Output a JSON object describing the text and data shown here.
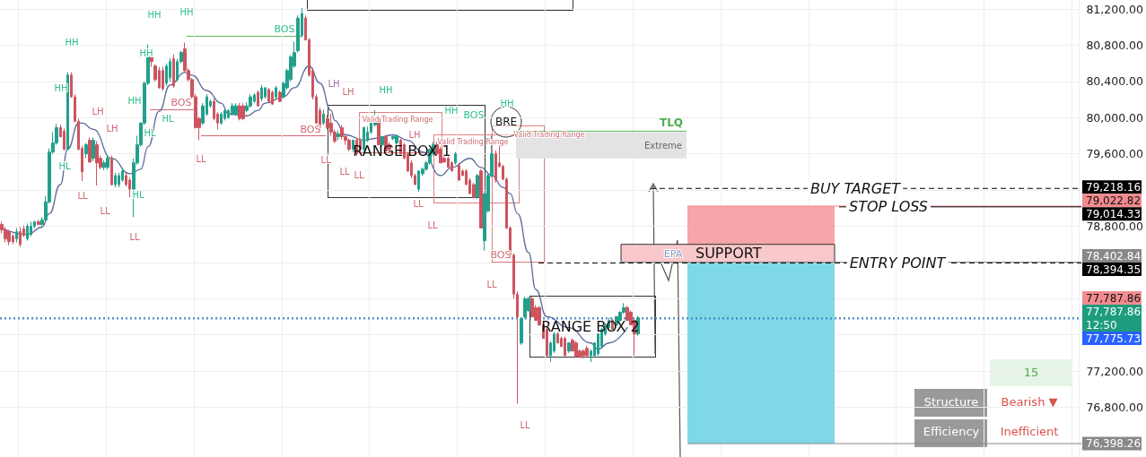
{
  "chart_data": {
    "type": "candlestick",
    "categories": [
      null,
      null,
      null,
      null,
      null,
      null,
      null,
      null,
      null,
      null,
      null,
      null,
      null,
      null,
      null,
      null,
      null,
      null,
      null,
      null,
      null,
      null,
      null,
      null,
      null,
      null,
      null,
      null,
      null,
      null,
      null,
      null,
      null,
      null,
      null,
      null,
      null,
      null,
      null,
      null,
      null,
      null,
      null,
      null,
      null,
      null,
      null,
      null,
      null,
      null,
      null,
      null,
      null,
      null,
      null,
      null,
      null,
      null,
      null,
      null,
      null,
      null,
      null,
      null,
      null,
      null,
      null,
      null,
      null,
      null,
      null,
      null,
      null,
      null,
      null,
      null,
      null,
      null,
      null,
      null,
      null,
      null,
      null,
      null,
      null,
      null,
      null,
      null,
      null,
      null,
      null,
      null,
      null,
      null,
      null,
      null,
      null,
      null,
      null,
      null,
      null,
      null,
      null,
      null,
      null,
      null,
      null,
      null,
      null,
      null,
      null,
      null,
      null,
      null,
      null,
      null,
      null,
      null,
      null,
      null,
      null,
      null,
      null,
      null,
      null,
      null,
      null,
      null,
      null,
      null,
      null,
      null,
      null,
      null,
      null,
      null,
      null,
      null,
      null,
      null,
      null,
      null,
      null,
      null,
      null,
      null,
      null,
      null,
      null,
      null,
      null,
      null,
      null,
      null,
      null,
      null,
      null,
      null,
      null,
      null,
      null,
      null,
      null,
      null,
      null,
      null,
      null,
      null,
      null,
      null,
      null,
      null,
      null,
      null,
      null,
      null,
      null,
      null,
      null,
      null,
      null,
      null,
      null,
      null,
      null,
      null,
      null,
      null,
      null,
      null,
      null,
      null,
      null,
      null,
      null,
      null,
      null,
      null,
      null,
      null,
      null,
      null,
      null,
      null,
      null,
      null,
      null,
      null,
      null,
      null,
      null,
      null,
      null,
      null,
      null,
      null,
      null,
      null,
      null,
      null,
      null,
      null,
      null,
      null,
      null,
      null,
      null,
      null,
      null,
      null,
      null,
      null,
      null,
      null,
      null,
      null,
      null,
      null,
      null,
      null,
      null,
      null,
      null,
      null,
      null,
      null,
      null,
      null,
      null,
      null,
      null,
      null,
      null,
      null,
      null,
      null,
      null,
      null,
      null,
      null,
      null,
      null,
      null,
      null,
      null,
      null,
      null,
      null,
      null,
      null,
      null,
      null,
      null,
      null,
      null,
      null,
      null,
      null,
      null,
      null,
      null,
      null,
      null,
      null,
      null,
      null,
      null,
      null,
      null,
      null,
      null,
      null,
      null,
      null,
      null
    ],
    "ohlc": [
      [
        78820,
        78850,
        78720,
        78760
      ],
      [
        78760,
        78790,
        78620,
        78660
      ],
      [
        78740,
        78760,
        78590,
        78630
      ],
      [
        78690,
        78720,
        78600,
        78630
      ],
      [
        78660,
        78780,
        78620,
        78740
      ],
      [
        78740,
        78790,
        78570,
        78600
      ],
      [
        78770,
        78810,
        78680,
        78700
      ],
      [
        78660,
        78830,
        78640,
        78800
      ],
      [
        78710,
        78850,
        78690,
        78800
      ],
      [
        78800,
        78860,
        78780,
        78850
      ],
      [
        78850,
        78870,
        78810,
        78820
      ],
      [
        78820,
        78900,
        78800,
        78870
      ],
      [
        78870,
        79130,
        78850,
        79070
      ],
      [
        79070,
        79660,
        79050,
        79620
      ],
      [
        79620,
        79840,
        79600,
        79720
      ],
      [
        79720,
        79930,
        79700,
        79890
      ],
      [
        79890,
        79920,
        79780,
        79790
      ],
      [
        79850,
        79880,
        79640,
        79650
      ],
      [
        79650,
        80500,
        79640,
        80470
      ],
      [
        80470,
        80500,
        80220,
        80230
      ],
      [
        80230,
        80260,
        79950,
        79960
      ],
      [
        79960,
        79990,
        79640,
        79650
      ],
      [
        79660,
        79690,
        79300,
        79400
      ],
      [
        79600,
        79720,
        79550,
        79700
      ],
      [
        79750,
        79780,
        79500,
        79510
      ],
      [
        79550,
        79780,
        79520,
        79750
      ],
      [
        79700,
        79740,
        79250,
        79500
      ],
      [
        79550,
        79580,
        79430,
        79450
      ],
      [
        79450,
        79530,
        79420,
        79500
      ],
      [
        79450,
        79580,
        79430,
        79550
      ],
      [
        79550,
        79580,
        79250,
        79260
      ],
      [
        79260,
        79390,
        79230,
        79360
      ],
      [
        79260,
        79390,
        79230,
        79360
      ],
      [
        79310,
        79440,
        79290,
        79410
      ],
      [
        79360,
        79390,
        79240,
        79260
      ],
      [
        79310,
        79340,
        79120,
        79210
      ],
      [
        79210,
        79550,
        78900,
        79500
      ],
      [
        79500,
        79800,
        79480,
        79700
      ],
      [
        79700,
        79950,
        79680,
        79940
      ],
      [
        79940,
        80400,
        79920,
        80380
      ],
      [
        80380,
        80810,
        80360,
        80670
      ],
      [
        80670,
        80700,
        80560,
        80620
      ],
      [
        80570,
        80590,
        80400,
        80420
      ],
      [
        80520,
        80560,
        80320,
        80330
      ],
      [
        80520,
        80560,
        80300,
        80320
      ],
      [
        80380,
        80600,
        80350,
        80570
      ],
      [
        80440,
        80660,
        80400,
        80620
      ],
      [
        80650,
        80700,
        80330,
        80350
      ],
      [
        80420,
        80650,
        80400,
        80620
      ],
      [
        80620,
        80740,
        80600,
        80720
      ],
      [
        80760,
        80830,
        80500,
        80520
      ],
      [
        80520,
        80550,
        80400,
        80420
      ],
      [
        80420,
        80440,
        80210,
        80230
      ],
      [
        80230,
        80260,
        79880,
        79890
      ],
      [
        79990,
        80010,
        79750,
        79890
      ],
      [
        79940,
        80160,
        79920,
        80130
      ],
      [
        80040,
        80260,
        80020,
        80230
      ],
      [
        80130,
        80200,
        80110,
        80180
      ],
      [
        80180,
        80210,
        79970,
        79990
      ],
      [
        80040,
        80060,
        79870,
        79940
      ],
      [
        79940,
        80060,
        79920,
        80040
      ],
      [
        79990,
        80110,
        79970,
        80080
      ],
      [
        80000,
        80090,
        79990,
        80080
      ],
      [
        80040,
        80160,
        80020,
        80130
      ],
      [
        80040,
        80160,
        80020,
        80130
      ],
      [
        80130,
        80160,
        79970,
        79990
      ],
      [
        80130,
        80160,
        79970,
        79990
      ],
      [
        80080,
        80170,
        80060,
        80130
      ],
      [
        80130,
        80260,
        80110,
        80230
      ],
      [
        80180,
        80270,
        80160,
        80250
      ],
      [
        80280,
        80300,
        80120,
        80130
      ],
      [
        80210,
        80360,
        80180,
        80330
      ],
      [
        80230,
        80340,
        80210,
        80330
      ],
      [
        80310,
        80330,
        80170,
        80180
      ],
      [
        80280,
        80300,
        80140,
        80150
      ],
      [
        80230,
        80350,
        80210,
        80330
      ],
      [
        80280,
        80300,
        80170,
        80180
      ],
      [
        80230,
        80400,
        80210,
        80380
      ],
      [
        80330,
        80540,
        80310,
        80520
      ],
      [
        80420,
        80690,
        80400,
        80670
      ],
      [
        80570,
        80840,
        80550,
        80720
      ],
      [
        80740,
        81130,
        80720,
        81100
      ],
      [
        80910,
        81210,
        80890,
        81150
      ],
      [
        81100,
        81130,
        80850,
        80860
      ],
      [
        80860,
        80880,
        80450,
        80470
      ],
      [
        80520,
        80550,
        80200,
        80230
      ],
      [
        80230,
        80260,
        79930,
        79940
      ],
      [
        80080,
        80110,
        79870,
        79890
      ],
      [
        79940,
        80090,
        79920,
        80040
      ],
      [
        79990,
        80030,
        79870,
        79890
      ],
      [
        79940,
        80040,
        79800,
        79840
      ],
      [
        79840,
        79870,
        79720,
        79740
      ],
      [
        79790,
        79860,
        79750,
        79820
      ],
      [
        79890,
        79920,
        79760,
        79790
      ],
      [
        79790,
        79820,
        79700,
        79750
      ],
      [
        79750,
        79770,
        79630,
        79650
      ],
      [
        79650,
        79760,
        79620,
        79750
      ],
      [
        79750,
        79780,
        79580,
        79600
      ],
      [
        79750,
        79770,
        79610,
        79650
      ],
      [
        79650,
        79900,
        79620,
        79890
      ],
      [
        79750,
        79900,
        79730,
        79840
      ],
      [
        79840,
        79950,
        79820,
        79940
      ],
      [
        79920,
        80080,
        79900,
        79970
      ],
      [
        79990,
        80010,
        79700,
        79700
      ],
      [
        79700,
        79800,
        79680,
        79790
      ],
      [
        79790,
        79810,
        79630,
        79630
      ],
      [
        79700,
        79730,
        79620,
        79650
      ],
      [
        79770,
        79800,
        79750,
        79790
      ],
      [
        79720,
        79810,
        79700,
        79800
      ],
      [
        79750,
        79770,
        79600,
        79600
      ],
      [
        79700,
        79720,
        79550,
        79550
      ],
      [
        79600,
        79620,
        79400,
        79410
      ],
      [
        79500,
        79530,
        79330,
        79360
      ],
      [
        79360,
        79380,
        79260,
        79260
      ],
      [
        79210,
        79420,
        79180,
        79410
      ],
      [
        79380,
        79450,
        79360,
        79430
      ],
      [
        79430,
        79520,
        79410,
        79500
      ],
      [
        79500,
        79660,
        79480,
        79650
      ],
      [
        79600,
        79730,
        79580,
        79700
      ],
      [
        79700,
        79730,
        79590,
        79600
      ],
      [
        79650,
        79680,
        79500,
        79500
      ],
      [
        79550,
        79570,
        79500,
        79510
      ],
      [
        79550,
        79570,
        79450,
        79450
      ],
      [
        79500,
        79520,
        79410,
        79410
      ],
      [
        79500,
        79620,
        79480,
        79600
      ],
      [
        79470,
        79500,
        79300,
        79310
      ],
      [
        79410,
        79430,
        79360,
        79360
      ],
      [
        79410,
        79430,
        79260,
        79260
      ],
      [
        79310,
        79330,
        79160,
        79160
      ],
      [
        79260,
        79280,
        79110,
        79120
      ],
      [
        79120,
        79380,
        79100,
        79360
      ],
      [
        79410,
        79430,
        78780,
        78780
      ],
      [
        78640,
        79160,
        78530,
        79160
      ],
      [
        78970,
        79380,
        78950,
        79360
      ],
      [
        79360,
        79800,
        79340,
        79600
      ],
      [
        79600,
        79640,
        79280,
        79310
      ],
      [
        79500,
        79750,
        79450,
        79460
      ],
      [
        79460,
        79480,
        79310,
        79320
      ],
      [
        79320,
        79340,
        78770,
        78780
      ],
      [
        78780,
        78800,
        78440,
        78480
      ],
      [
        78480,
        78500,
        78000,
        78050
      ],
      [
        78050,
        78080,
        76840,
        77800
      ],
      [
        77510,
        77790,
        77490,
        77780
      ],
      [
        77800,
        78020,
        77780,
        78000
      ],
      [
        77870,
        78020,
        77850,
        78000
      ],
      [
        78000,
        78020,
        77800,
        77800
      ],
      [
        77900,
        77930,
        77760,
        77760
      ],
      [
        77900,
        77920,
        77700,
        77710
      ],
      [
        77710,
        77730,
        77560,
        77560
      ],
      [
        77660,
        77680,
        77370,
        77370
      ],
      [
        77370,
        77530,
        77300,
        77510
      ],
      [
        77420,
        77630,
        77400,
        77610
      ],
      [
        77610,
        77630,
        77510,
        77510
      ],
      [
        77560,
        77580,
        77470,
        77470
      ],
      [
        77560,
        77580,
        77370,
        77370
      ],
      [
        77420,
        77520,
        77400,
        77510
      ],
      [
        77540,
        77560,
        77420,
        77420
      ],
      [
        77510,
        77530,
        77350,
        77360
      ],
      [
        77420,
        77440,
        77350,
        77350
      ],
      [
        77420,
        77440,
        77340,
        77370
      ],
      [
        77450,
        77480,
        77350,
        77370
      ],
      [
        77370,
        77440,
        77300,
        77420
      ],
      [
        77370,
        77520,
        77350,
        77510
      ],
      [
        77390,
        77620,
        77370,
        77610
      ],
      [
        77470,
        77680,
        77450,
        77660
      ],
      [
        77610,
        77730,
        77590,
        77710
      ],
      [
        77680,
        77790,
        77660,
        77760
      ],
      [
        77760,
        77780,
        77660,
        77660
      ],
      [
        77710,
        77810,
        77690,
        77800
      ],
      [
        77760,
        77860,
        77740,
        77850
      ],
      [
        77850,
        77950,
        77830,
        77900
      ],
      [
        77900,
        77920,
        77760,
        77760
      ],
      [
        77850,
        77870,
        77710,
        77710
      ],
      [
        77760,
        77780,
        77370,
        77610
      ],
      [
        77610,
        77810,
        77590,
        77787.86
      ],
      null,
      null,
      null,
      null,
      null,
      null,
      null,
      null,
      null,
      null,
      null,
      null,
      null,
      null,
      null,
      null,
      null,
      null,
      null,
      null,
      null,
      null,
      null,
      null,
      null,
      null,
      null,
      null,
      null,
      null,
      null,
      null,
      null,
      null,
      null,
      null,
      null,
      null,
      null,
      null,
      null,
      null,
      null,
      null,
      null,
      null,
      null,
      null,
      null,
      null,
      null,
      null,
      null,
      null,
      null,
      null,
      null,
      null,
      null,
      null,
      null,
      null,
      null,
      null,
      null,
      null,
      null,
      null,
      null,
      null,
      null,
      null,
      null,
      null,
      null,
      null,
      null,
      null,
      null,
      null,
      null,
      null,
      null,
      null,
      null,
      null,
      null,
      null,
      null,
      null,
      null,
      null,
      null,
      null,
      null,
      null,
      null,
      null,
      null,
      null,
      null,
      null,
      null,
      null,
      null,
      null,
      null,
      null,
      null,
      null,
      null,
      null,
      null,
      null,
      null,
      null,
      null,
      null,
      null,
      null
    ],
    "series": [
      {
        "type": "line",
        "color": "#5b6b9c",
        "values": [
          78780,
          null,
          null,
          null,
          null,
          null,
          null,
          78710,
          null,
          null,
          null,
          78790,
          null,
          78940,
          null,
          null,
          79260,
          null,
          79650,
          null,
          null,
          79940,
          79940,
          null,
          null,
          79870,
          null,
          null,
          null,
          null,
          79550,
          null,
          null,
          null,
          null,
          79380,
          null,
          null,
          79430,
          null,
          79680,
          null,
          null,
          80070,
          null,
          null,
          80360,
          null,
          null,
          null,
          80500,
          null,
          80470,
          null,
          null,
          null,
          80300,
          null,
          null,
          null,
          80160,
          null,
          80040,
          null,
          null,
          null,
          null,
          80020,
          null,
          null,
          80080,
          null,
          80160,
          null,
          null,
          null,
          null,
          80230,
          null,
          null,
          80330,
          null,
          null,
          null,
          80570,
          null,
          null,
          80380,
          null,
          null,
          80080,
          79970,
          null,
          null,
          79810,
          null,
          null,
          null,
          null,
          79750,
          null,
          null,
          79770,
          null,
          null,
          null,
          null,
          79810,
          null,
          null,
          null,
          79750,
          null,
          null,
          null,
          79620,
          null,
          null,
          null,
          null,
          79360,
          null,
          null,
          79450,
          null,
          null,
          null,
          null,
          79550,
          null,
          null,
          79450,
          null,
          null,
          79360,
          null,
          null,
          79230,
          null,
          79160,
          null,
          78940,
          null,
          null,
          78510,
          null,
          78100,
          null,
          null,
          77800,
          null,
          null,
          null,
          null,
          null,
          77680,
          null,
          null,
          null,
          null,
          null,
          77510,
          null,
          77440,
          null,
          null,
          77510,
          null,
          null,
          null,
          null,
          77680,
          null,
          null,
          null,
          null,
          null,
          null,
          null,
          null,
          null,
          null,
          null,
          null,
          null,
          null,
          null,
          null,
          null,
          null,
          null,
          null,
          null,
          null,
          null,
          null,
          null,
          null,
          null,
          null,
          null,
          null,
          null,
          null,
          null,
          null,
          null,
          null,
          null,
          null,
          null,
          null,
          null,
          null,
          null,
          null,
          null,
          null,
          null,
          null,
          null,
          null,
          null,
          null,
          null,
          null,
          null,
          null,
          null,
          null,
          null,
          null,
          null,
          null,
          null,
          null,
          null,
          null,
          null,
          null,
          null,
          null,
          null,
          null,
          null,
          null,
          null,
          null,
          null,
          null,
          null,
          null,
          null,
          null,
          null,
          null,
          null,
          null,
          null,
          null,
          null,
          null,
          null,
          null,
          null,
          null,
          null,
          null,
          null,
          null,
          null,
          null,
          null,
          null,
          null,
          null,
          null,
          null,
          null,
          null,
          null,
          null,
          null,
          null,
          null,
          null,
          null,
          null,
          null,
          null,
          null,
          null,
          null,
          null,
          null
        ]
      }
    ],
    "ylim": [
      76250,
      81300
    ],
    "yticks": [
      {
        "value": 76800,
        "label": "76,800.00"
      },
      {
        "value": 77200,
        "label": "77,200.00"
      },
      {
        "value": 77600,
        "label": null
      },
      {
        "value": 78000,
        "label": null
      },
      {
        "value": 78400,
        "label": null
      },
      {
        "value": 78800,
        "label": "78,800.00"
      },
      {
        "value": 79200,
        "label": null
      },
      {
        "value": 79600,
        "label": "79,600.00"
      },
      {
        "value": 80000,
        "label": "80,000.00"
      },
      {
        "value": 80400,
        "label": "80,400.00"
      },
      {
        "value": 80800,
        "label": "80,800.00"
      },
      {
        "value": 81200,
        "label": "81,200.00"
      }
    ],
    "grid": true,
    "tick_labels": "y",
    "bands": [
      {
        "axis": "y",
        "from": 79550,
        "to": 79840,
        "label": "Extreme",
        "color": "#e3e3e3"
      },
      {
        "axis": "y",
        "from": 78402.84,
        "to": 79022.82,
        "color": "#f6a5a9"
      },
      {
        "axis": "y",
        "from": 76398.26,
        "to": 78394.35,
        "color": "#7fd8e6"
      },
      {
        "axis": "y",
        "from": 78402.84,
        "to": 78600,
        "label": "SUPPORT",
        "color": "#f8c8ca"
      }
    ],
    "ref_lines": [
      {
        "axis": "y",
        "value": 79850,
        "label": "TLQ",
        "color": "#5cb85c",
        "line_style": "solid"
      },
      {
        "axis": "y",
        "value": 79218.16,
        "label": "79,218.16",
        "color": "#000000",
        "line_style": "dashed"
      },
      {
        "axis": "y",
        "value": 79022.82,
        "label": "79,022.82",
        "color": "#f28b8f",
        "line_style": "solid"
      },
      {
        "axis": "y",
        "value": 79014.33,
        "label": "79,014.33",
        "color": "#000000",
        "line_style": "solid"
      },
      {
        "axis": "y",
        "value": 78402.84,
        "label": "78,402.84",
        "color": "#888888",
        "line_style": "solid"
      },
      {
        "axis": "y",
        "value": 78394.35,
        "label": "78,394.35",
        "color": "#000000",
        "line_style": "dashed"
      },
      {
        "axis": "y",
        "value": 77787.86,
        "label": "77,787.86",
        "color": "#f28b8f",
        "line_style": "dotted"
      },
      {
        "axis": "y",
        "value": 77787.86,
        "label": "77,787.86",
        "color": "#1e9c7e",
        "line_style": "dotted"
      },
      {
        "axis": "y",
        "value": 77775.73,
        "label": "77,775.73",
        "color": "#2962ff",
        "line_style": "dotted"
      },
      {
        "axis": "y",
        "value": 76398.26,
        "label": "76,398.26",
        "color": "#888888",
        "line_style": "solid"
      }
    ],
    "annotations": [
      "HH",
      "HH",
      "HH",
      "HH",
      "HH",
      "HH",
      "HL",
      "HL",
      "HL",
      "HL",
      "LH",
      "LH",
      "LL",
      "LL",
      "LL",
      "LL",
      "BOS",
      "BOS",
      "BOS",
      "LL",
      "LH",
      "LH",
      "HH",
      "HH",
      "HH",
      "LH",
      "LL",
      "LL",
      "LL",
      "LL",
      "BOS",
      "LL",
      "LL",
      "Valid Trading Range",
      "Valid Trading Range",
      "Valid Trading Range",
      "BOS",
      "BRE",
      "RANGE BOX 1",
      "RANGE BOX 2",
      "EPA",
      "15",
      "Structure",
      "Bearish ▼",
      "Efficiency",
      "Inefficient",
      {
        "text": "BUY TARGET",
        "y": 79218.16
      },
      {
        "text": "STOP LOSS",
        "y": 79014.33
      },
      {
        "text": "ENTRY POINT",
        "y": 78394.35
      },
      "12:50"
    ]
  }
}
